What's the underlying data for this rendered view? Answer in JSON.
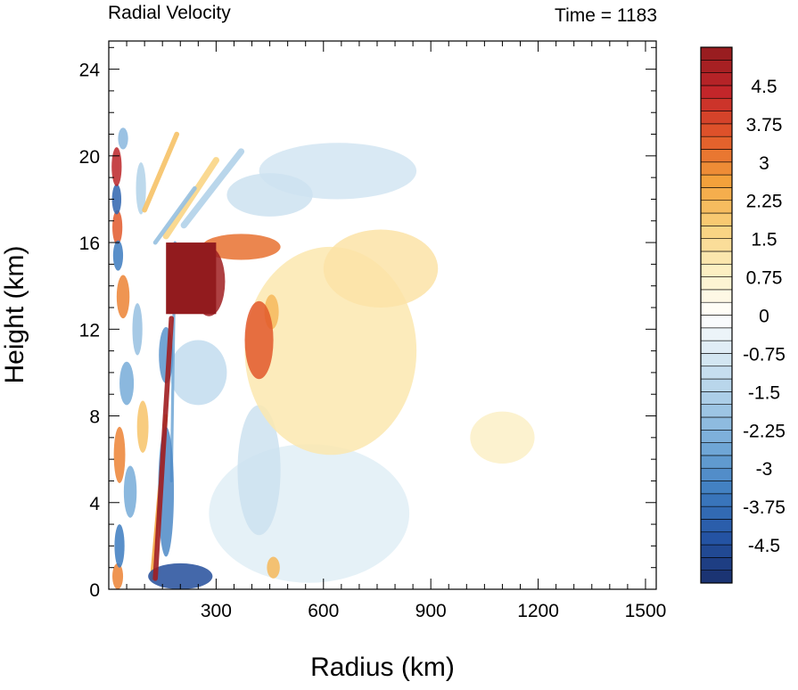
{
  "chart_data": {
    "type": "heatmap",
    "title_left": "Radial Velocity",
    "title_right": "Time = 1183",
    "xlabel": "Radius (km)",
    "ylabel": "Height (km)",
    "xlim": [
      0,
      1530
    ],
    "ylim": [
      0,
      25.3
    ],
    "x_ticks": [
      300,
      600,
      900,
      1200,
      1500
    ],
    "x_tick_labels": [
      "300",
      "600",
      "900",
      "1200",
      "1500"
    ],
    "y_ticks": [
      0,
      4,
      8,
      12,
      16,
      20,
      24
    ],
    "y_tick_labels": [
      "0",
      "4",
      "8",
      "12",
      "16",
      "20",
      "24"
    ],
    "grid": false,
    "colorbar": {
      "min": -5.25,
      "max": 5.25,
      "step": 0.25,
      "labels": [
        "4.5",
        "3.75",
        "3",
        "2.25",
        "1.5",
        "0.75",
        "0",
        "-0.75",
        "-1.5",
        "-2.25",
        "-3",
        "-3.75",
        "-4.5"
      ],
      "label_values": [
        4.5,
        3.75,
        3,
        2.25,
        1.5,
        0.75,
        0,
        -0.75,
        -1.5,
        -2.25,
        -3,
        -3.75,
        -4.5
      ],
      "colors": [
        "#1a2f6b",
        "#2453a3",
        "#3c7bbf",
        "#6fa6d6",
        "#a5cae6",
        "#d3e6f2",
        "#ffffff",
        "#fcefc2",
        "#f9d07a",
        "#f3a13b",
        "#e2582a",
        "#c3262a",
        "#921b1e"
      ]
    },
    "features": [
      {
        "shape": "rect",
        "x": [
          160,
          300
        ],
        "y": [
          12.7,
          16.0
        ],
        "v": 5.5
      },
      {
        "shape": "ellipse",
        "x": 280,
        "y": 14.2,
        "rx": 45,
        "ry": 1.6,
        "v": 5.0
      },
      {
        "shape": "ellipse",
        "x": 370,
        "y": 15.8,
        "rx": 110,
        "ry": 0.6,
        "v": 3.2
      },
      {
        "shape": "ellipse",
        "x": 420,
        "y": 11.5,
        "rx": 40,
        "ry": 1.8,
        "v": 3.5
      },
      {
        "shape": "ellipse",
        "x": 455,
        "y": 12.8,
        "rx": 20,
        "ry": 0.8,
        "v": 2.2
      },
      {
        "shape": "ellipse",
        "x": 620,
        "y": 11.0,
        "rx": 240,
        "ry": 4.8,
        "v": 1.1
      },
      {
        "shape": "ellipse",
        "x": 760,
        "y": 14.8,
        "rx": 160,
        "ry": 1.8,
        "v": 1.2
      },
      {
        "shape": "ellipse",
        "x": 1100,
        "y": 7.0,
        "rx": 90,
        "ry": 1.2,
        "v": 0.8
      },
      {
        "shape": "ellipse",
        "x": 640,
        "y": 19.3,
        "rx": 220,
        "ry": 1.3,
        "v": -0.9
      },
      {
        "shape": "ellipse",
        "x": 450,
        "y": 18.2,
        "rx": 120,
        "ry": 1.0,
        "v": -1.0
      },
      {
        "shape": "ellipse",
        "x": 420,
        "y": 5.5,
        "rx": 60,
        "ry": 3.0,
        "v": -1.0
      },
      {
        "shape": "ellipse",
        "x": 560,
        "y": 3.5,
        "rx": 280,
        "ry": 3.2,
        "v": -0.6
      },
      {
        "shape": "ellipse",
        "x": 250,
        "y": 10.0,
        "rx": 80,
        "ry": 1.5,
        "v": -1.2
      },
      {
        "shape": "ellipse",
        "x": 460,
        "y": 1.0,
        "rx": 18,
        "ry": 0.5,
        "v": 2.2
      },
      {
        "shape": "ellipse",
        "x": 200,
        "y": 0.6,
        "rx": 90,
        "ry": 0.6,
        "v": -4.5
      },
      {
        "shape": "ellipse",
        "x": 160,
        "y": 4.5,
        "rx": 22,
        "ry": 3.0,
        "v": -3.2
      },
      {
        "shape": "ellipse",
        "x": 160,
        "y": 10.8,
        "rx": 20,
        "ry": 1.3,
        "v": -3.0
      },
      {
        "shape": "line",
        "x0": 130,
        "y0": 0.5,
        "x1": 175,
        "y1": 12.5,
        "w": 14,
        "v": 5.0
      },
      {
        "shape": "line",
        "x0": 120,
        "y0": 0.5,
        "x1": 160,
        "y1": 8.0,
        "w": 10,
        "v": 2.5
      },
      {
        "shape": "line",
        "x0": 175,
        "y0": 5.0,
        "x1": 185,
        "y1": 16.0,
        "w": 8,
        "v": -2.5
      },
      {
        "shape": "line",
        "x0": 160,
        "y0": 16.3,
        "x1": 300,
        "y1": 19.8,
        "w": 18,
        "v": 1.6
      },
      {
        "shape": "line",
        "x0": 210,
        "y0": 16.8,
        "x1": 370,
        "y1": 20.2,
        "w": 18,
        "v": -1.5
      },
      {
        "shape": "line",
        "x0": 100,
        "y0": 17.5,
        "x1": 190,
        "y1": 21.0,
        "w": 14,
        "v": 2.0
      },
      {
        "shape": "line",
        "x0": 130,
        "y0": 16.0,
        "x1": 240,
        "y1": 18.5,
        "w": 12,
        "v": -2.0
      },
      {
        "shape": "ellipse",
        "x": 22,
        "y": 19.5,
        "rx": 14,
        "ry": 0.9,
        "v": 4.5
      },
      {
        "shape": "ellipse",
        "x": 22,
        "y": 18.0,
        "rx": 13,
        "ry": 0.7,
        "v": -4.0
      },
      {
        "shape": "ellipse",
        "x": 24,
        "y": 16.7,
        "rx": 14,
        "ry": 0.8,
        "v": 3.5
      },
      {
        "shape": "ellipse",
        "x": 26,
        "y": 15.4,
        "rx": 14,
        "ry": 0.7,
        "v": -3.5
      },
      {
        "shape": "ellipse",
        "x": 40,
        "y": 13.5,
        "rx": 18,
        "ry": 1.0,
        "v": 3.0
      },
      {
        "shape": "ellipse",
        "x": 50,
        "y": 9.5,
        "rx": 20,
        "ry": 1.0,
        "v": -2.5
      },
      {
        "shape": "ellipse",
        "x": 30,
        "y": 6.2,
        "rx": 16,
        "ry": 1.3,
        "v": 3.0
      },
      {
        "shape": "ellipse",
        "x": 60,
        "y": 4.5,
        "rx": 18,
        "ry": 1.2,
        "v": -2.5
      },
      {
        "shape": "ellipse",
        "x": 30,
        "y": 2.0,
        "rx": 14,
        "ry": 1.0,
        "v": -3.5
      },
      {
        "shape": "ellipse",
        "x": 25,
        "y": 0.6,
        "rx": 15,
        "ry": 0.6,
        "v": 3.0
      },
      {
        "shape": "ellipse",
        "x": 90,
        "y": 18.5,
        "rx": 14,
        "ry": 1.2,
        "v": -1.5
      },
      {
        "shape": "ellipse",
        "x": 80,
        "y": 12.0,
        "rx": 14,
        "ry": 1.2,
        "v": -2.0
      },
      {
        "shape": "ellipse",
        "x": 95,
        "y": 7.5,
        "rx": 16,
        "ry": 1.2,
        "v": 2.0
      },
      {
        "shape": "ellipse",
        "x": 40,
        "y": 20.8,
        "rx": 14,
        "ry": 0.5,
        "v": -2.2
      }
    ]
  }
}
